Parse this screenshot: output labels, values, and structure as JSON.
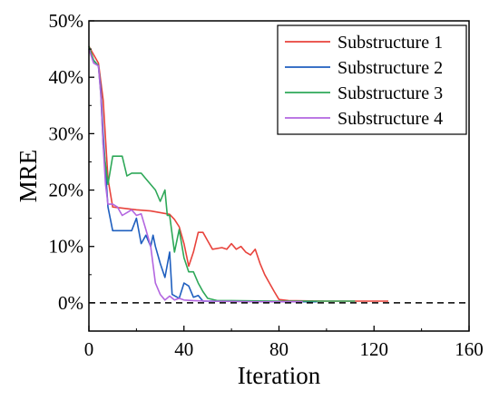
{
  "chart_data": {
    "type": "line",
    "title": "",
    "xlabel": "Iteration",
    "ylabel": "MRE",
    "xlim": [
      0,
      160
    ],
    "ylim": [
      -5,
      50
    ],
    "xticks": [
      0,
      40,
      80,
      120,
      160
    ],
    "xtick_labels": [
      "0",
      "40",
      "80",
      "120",
      "160"
    ],
    "yticks": [
      0,
      10,
      20,
      30,
      40,
      50
    ],
    "ytick_labels": [
      "0%",
      "10%",
      "20%",
      "30%",
      "40%",
      "50%"
    ],
    "grid": false,
    "legend_position": "top-right",
    "reference_line": {
      "y": 0,
      "style": "dashed",
      "color": "#000000"
    },
    "series": [
      {
        "name": "Substructure 1",
        "color": "#e8433c",
        "points": [
          [
            0,
            45.5
          ],
          [
            2,
            44
          ],
          [
            4,
            42.5
          ],
          [
            6,
            36
          ],
          [
            8,
            22
          ],
          [
            10,
            17
          ],
          [
            14,
            16.8
          ],
          [
            20,
            16.5
          ],
          [
            26,
            16.3
          ],
          [
            30,
            16
          ],
          [
            34,
            15.7
          ],
          [
            36,
            14.8
          ],
          [
            38,
            13.5
          ],
          [
            40,
            10.5
          ],
          [
            42,
            6.5
          ],
          [
            44,
            9
          ],
          [
            46,
            12.5
          ],
          [
            48,
            12.5
          ],
          [
            50,
            11
          ],
          [
            52,
            9.5
          ],
          [
            56,
            9.8
          ],
          [
            58,
            9.5
          ],
          [
            60,
            10.5
          ],
          [
            62,
            9.5
          ],
          [
            64,
            10
          ],
          [
            66,
            9
          ],
          [
            68,
            8.5
          ],
          [
            70,
            9.5
          ],
          [
            72,
            7
          ],
          [
            74,
            5
          ],
          [
            76,
            3.5
          ],
          [
            78,
            2
          ],
          [
            80,
            0.6
          ],
          [
            84,
            0.4
          ],
          [
            100,
            0.3
          ],
          [
            126,
            0.3
          ]
        ]
      },
      {
        "name": "Substructure 2",
        "color": "#1f5fbf",
        "points": [
          [
            0,
            45
          ],
          [
            2,
            43
          ],
          [
            4,
            42
          ],
          [
            5,
            38
          ],
          [
            6,
            30
          ],
          [
            8,
            17
          ],
          [
            10,
            12.8
          ],
          [
            14,
            12.8
          ],
          [
            18,
            12.8
          ],
          [
            20,
            15
          ],
          [
            22,
            10.5
          ],
          [
            24,
            12
          ],
          [
            26,
            10
          ],
          [
            27,
            12
          ],
          [
            28,
            10
          ],
          [
            30,
            7
          ],
          [
            32,
            4.5
          ],
          [
            34,
            9
          ],
          [
            35,
            1.5
          ],
          [
            38,
            0.8
          ],
          [
            40,
            3.5
          ],
          [
            42,
            3
          ],
          [
            44,
            1
          ],
          [
            46,
            1.3
          ],
          [
            48,
            0.3
          ],
          [
            60,
            0.3
          ],
          [
            80,
            0.2
          ],
          [
            96,
            0.2
          ]
        ]
      },
      {
        "name": "Substructure 3",
        "color": "#2ea858",
        "points": [
          [
            0,
            45.5
          ],
          [
            2,
            43
          ],
          [
            4,
            42
          ],
          [
            5,
            37
          ],
          [
            6,
            28
          ],
          [
            8,
            21
          ],
          [
            10,
            26
          ],
          [
            14,
            26
          ],
          [
            16,
            22.5
          ],
          [
            18,
            23
          ],
          [
            22,
            23
          ],
          [
            24,
            22
          ],
          [
            28,
            20
          ],
          [
            30,
            18
          ],
          [
            32,
            20
          ],
          [
            33,
            15.5
          ],
          [
            34,
            15.5
          ],
          [
            36,
            9
          ],
          [
            38,
            13
          ],
          [
            40,
            8
          ],
          [
            42,
            5.5
          ],
          [
            44,
            5.5
          ],
          [
            46,
            3.5
          ],
          [
            48,
            2
          ],
          [
            50,
            0.8
          ],
          [
            54,
            0.4
          ],
          [
            60,
            0.4
          ],
          [
            80,
            0.3
          ],
          [
            100,
            0.3
          ],
          [
            112,
            0.3
          ]
        ]
      },
      {
        "name": "Substructure 4",
        "color": "#b366e0",
        "points": [
          [
            0,
            45
          ],
          [
            2,
            42.5
          ],
          [
            4,
            42
          ],
          [
            5,
            37
          ],
          [
            6,
            28
          ],
          [
            7,
            21
          ],
          [
            8,
            17.5
          ],
          [
            10,
            17.5
          ],
          [
            12,
            17
          ],
          [
            14,
            15.5
          ],
          [
            16,
            16
          ],
          [
            18,
            16.5
          ],
          [
            20,
            15.5
          ],
          [
            22,
            15.8
          ],
          [
            24,
            13
          ],
          [
            26,
            10
          ],
          [
            28,
            3.5
          ],
          [
            30,
            1.5
          ],
          [
            32,
            0.5
          ],
          [
            34,
            1.2
          ],
          [
            36,
            0.5
          ],
          [
            38,
            0.8
          ],
          [
            40,
            0.5
          ],
          [
            44,
            0.4
          ],
          [
            50,
            0.3
          ],
          [
            70,
            0.2
          ],
          [
            90,
            0.2
          ]
        ]
      }
    ]
  }
}
